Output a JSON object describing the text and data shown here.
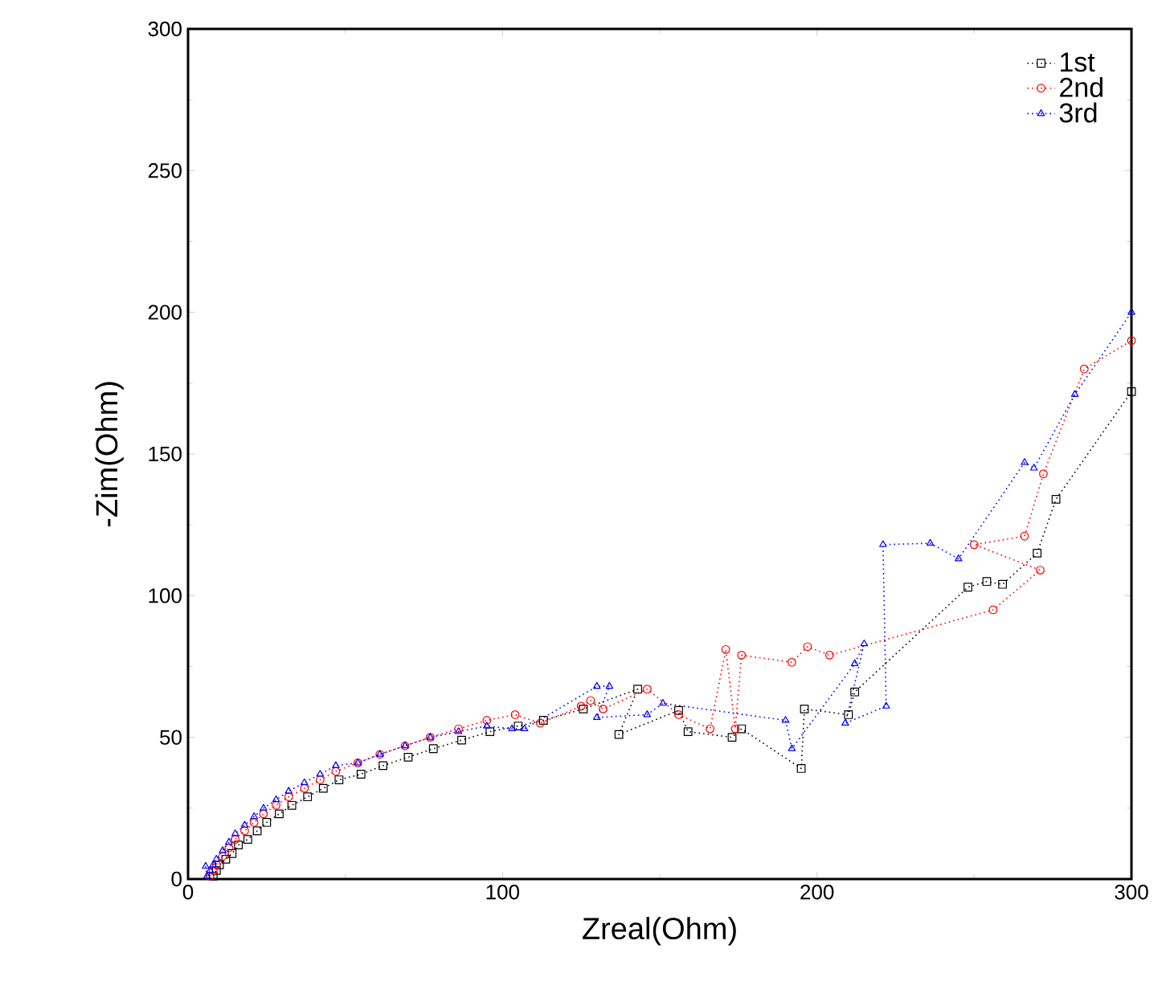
{
  "chart_data": {
    "type": "line",
    "xlabel": "Zreal(Ohm)",
    "ylabel": "-Zim(Ohm)",
    "xlim": [
      0,
      300
    ],
    "ylim": [
      0,
      300
    ],
    "xticks": [
      0,
      100,
      200,
      300
    ],
    "yticks": [
      0,
      50,
      100,
      150,
      200,
      250,
      300
    ],
    "grid": false,
    "legend": "top right",
    "line_style": "dotted",
    "series": [
      {
        "name": "1st",
        "color": "#000000",
        "marker": "square",
        "x": [
          8,
          9,
          10,
          12,
          14,
          16,
          19,
          22,
          25,
          29,
          33,
          38,
          43,
          48,
          55,
          62,
          70,
          78,
          87,
          96,
          105,
          113,
          125.7,
          143,
          137,
          156,
          159,
          173,
          176,
          195,
          196,
          210,
          212,
          248,
          254,
          259,
          270,
          276,
          300
        ],
        "values": [
          1,
          3,
          5,
          7,
          9,
          12,
          14,
          17,
          20,
          23,
          26,
          29,
          32,
          35,
          37,
          40,
          43,
          46,
          49,
          52,
          54,
          56,
          60,
          67,
          51,
          59.5,
          52,
          50,
          53,
          39,
          60,
          58,
          66,
          103,
          105,
          104,
          115,
          134,
          172
        ]
      },
      {
        "name": "2nd",
        "color": "#ff0000",
        "marker": "circle",
        "x": [
          7,
          8,
          9,
          11,
          13,
          15,
          18,
          21,
          24,
          28,
          32,
          37,
          42,
          47,
          54,
          61,
          69,
          77,
          86,
          95,
          104,
          112,
          125,
          128,
          132,
          146,
          156,
          166,
          171,
          174,
          176,
          192,
          197,
          204,
          256,
          271,
          250,
          266,
          272,
          285,
          300
        ],
        "values": [
          1,
          3,
          5,
          8,
          11,
          14,
          17,
          20,
          23,
          26,
          29,
          32,
          35,
          38,
          41,
          44,
          47,
          50,
          53,
          56,
          58,
          55,
          61,
          63,
          60,
          67,
          58,
          53,
          81,
          53,
          79,
          76.5,
          82,
          79,
          95,
          109,
          118,
          121,
          143,
          180,
          190
        ]
      },
      {
        "name": "3rd",
        "color": "#0000ff",
        "marker": "triangle",
        "x": [
          5.6,
          6,
          7,
          8,
          9,
          11,
          13,
          15,
          18,
          21,
          24,
          28,
          32,
          37,
          42,
          47,
          54,
          61,
          69,
          77,
          86,
          95,
          103,
          107,
          130,
          134,
          130,
          146,
          151,
          190,
          192,
          212,
          215,
          209,
          222,
          221,
          236,
          245,
          266,
          269,
          282,
          300
        ],
        "values": [
          4.5,
          1,
          3,
          5,
          7,
          10,
          13,
          16,
          19,
          22,
          25,
          28,
          31,
          34,
          37,
          40,
          41,
          44,
          47,
          50,
          52,
          54,
          53,
          53,
          68,
          68,
          57,
          58,
          62,
          56,
          46,
          76,
          83,
          55,
          61,
          118,
          118.5,
          113,
          147,
          145,
          171,
          200
        ]
      }
    ]
  }
}
